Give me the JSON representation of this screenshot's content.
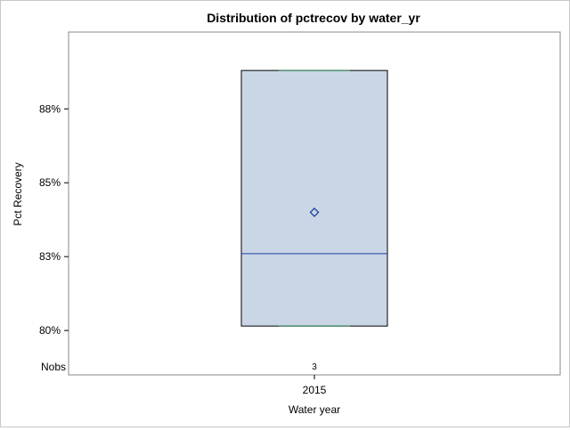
{
  "chart_data": {
    "type": "box",
    "title": "Distribution of pctrecov by water_yr",
    "xlabel": "Water year",
    "ylabel": "Pct Recovery",
    "categories": [
      "2015"
    ],
    "y_ticks": [
      {
        "value": 80,
        "label": "80%"
      },
      {
        "value": 82.5,
        "label": "83%"
      },
      {
        "value": 85,
        "label": "85%"
      },
      {
        "value": 87.5,
        "label": "88%"
      }
    ],
    "ylim": [
      79.1,
      90.1
    ],
    "boxes": [
      {
        "category": "2015",
        "min": 80.15,
        "q1": 80.15,
        "median": 82.6,
        "mean": 84.0,
        "q3": 88.8,
        "max": 88.8,
        "nobs": "3"
      }
    ],
    "nobs_label": "Nobs",
    "colors": {
      "box_fill": "#cad6e6",
      "box_outline": "#000000",
      "median_line": "#1f3fa0",
      "mean_marker": "#1f3fa0",
      "whisker_cap": "#2e8b57",
      "frame": "#8a8a8a"
    }
  }
}
